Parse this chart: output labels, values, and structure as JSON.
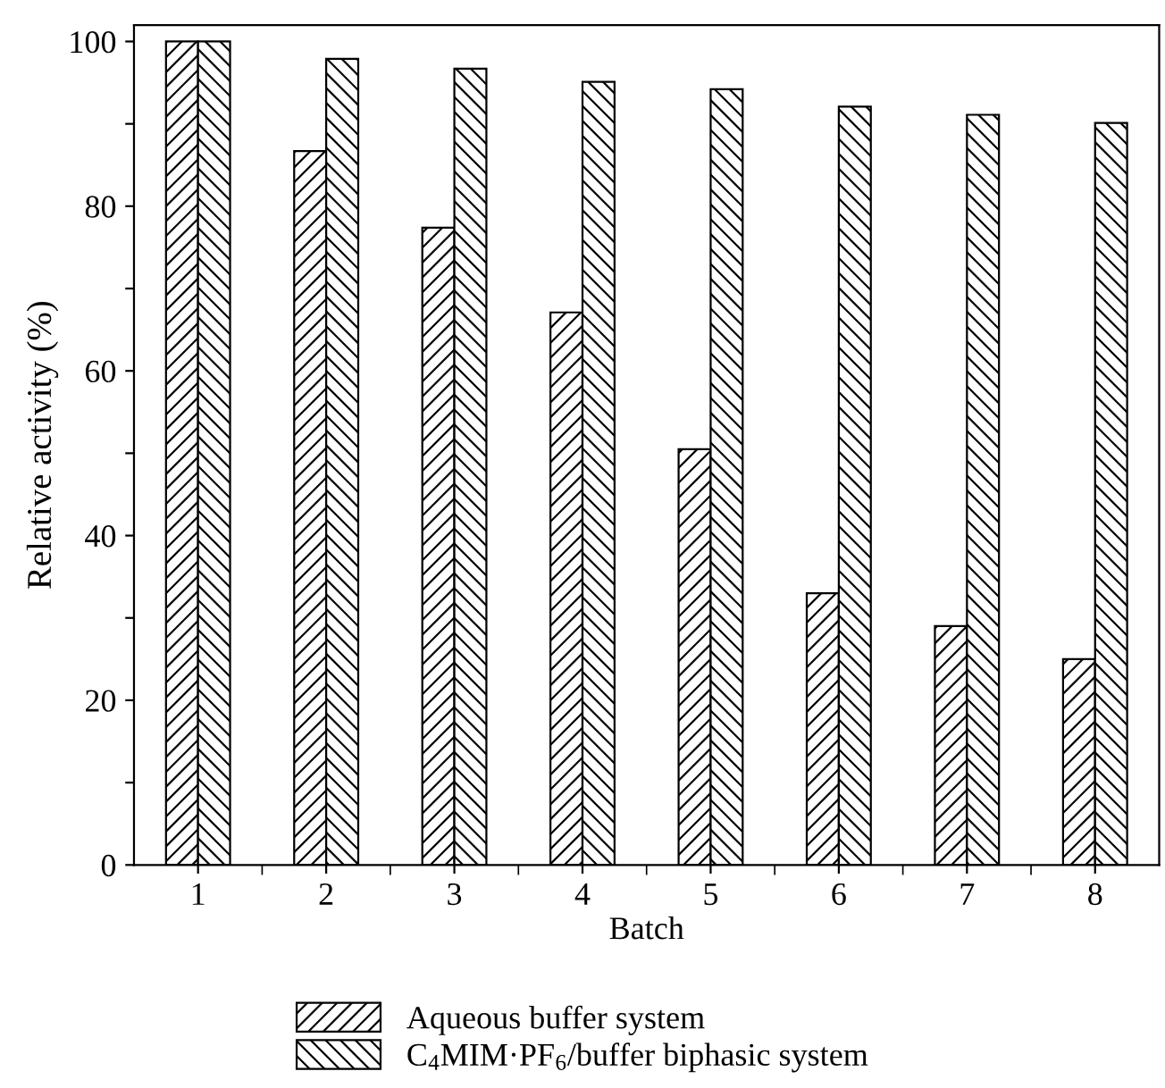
{
  "chart_data": {
    "type": "bar",
    "xlabel": "Batch",
    "ylabel": "Relative activity (%)",
    "categories": [
      "1",
      "2",
      "3",
      "4",
      "5",
      "6",
      "7",
      "8"
    ],
    "series": [
      {
        "name": "Aqueous buffer system",
        "color": "#000000",
        "values": [
          100,
          86.7,
          77.4,
          67.1,
          50.5,
          33,
          29,
          25
        ]
      },
      {
        "name": "C$_{4}$MIM·PF$_{6}$/buffer biphasic system",
        "color": "#000000",
        "values": [
          100,
          97.9,
          96.7,
          95.1,
          94.2,
          92.1,
          91.1,
          90.1
        ]
      }
    ],
    "ylim": [
      0,
      102
    ],
    "yticks": [
      0,
      {
        "value": 10,
        "label": null
      },
      20,
      {
        "value": 30,
        "label": null
      },
      40,
      {
        "value": 50,
        "label": null
      },
      60,
      {
        "value": 70,
        "label": null
      },
      80,
      {
        "value": 90,
        "label": null
      },
      100
    ],
    "grid": false,
    "legend": "bottom"
  }
}
